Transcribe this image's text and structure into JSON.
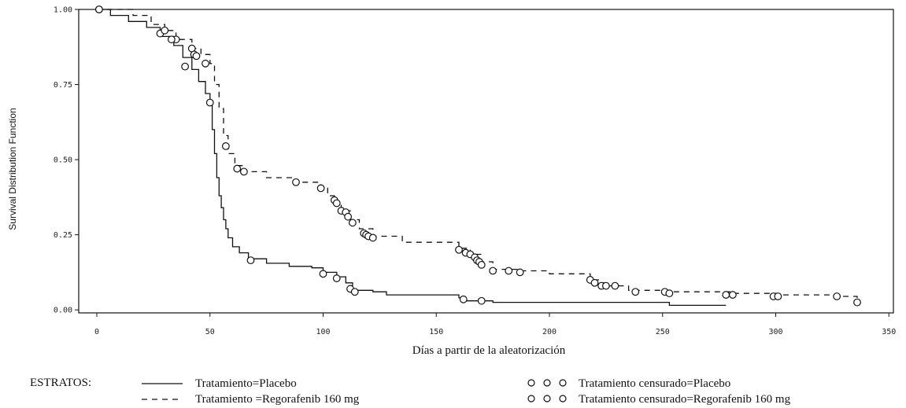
{
  "chart_data": {
    "type": "line",
    "title": "",
    "xlabel": "Días a partir de la aleatorización",
    "ylabel": "Survival Distribution Function",
    "xlim": [
      -8,
      352
    ],
    "ylim": [
      -0.01,
      1.0
    ],
    "x_ticks": [
      0,
      50,
      100,
      150,
      200,
      250,
      300,
      350
    ],
    "x_tick_labels": [
      "0",
      "50",
      "100",
      "150",
      "200",
      "250",
      "300",
      "350"
    ],
    "y_ticks": [
      0.0,
      0.25,
      0.5,
      0.75,
      1.0
    ],
    "y_tick_labels": [
      "0.00",
      "0.25",
      "0.50",
      "0.75",
      "1.00"
    ],
    "grid": false,
    "legend_position": "bottom",
    "series": [
      {
        "name": "Tratamiento=Placebo",
        "line_style": "solid",
        "points": [
          [
            0,
            1.0
          ],
          [
            6,
            0.98
          ],
          [
            14,
            0.96
          ],
          [
            22,
            0.94
          ],
          [
            28,
            0.91
          ],
          [
            34,
            0.88
          ],
          [
            38,
            0.84
          ],
          [
            42,
            0.8
          ],
          [
            45,
            0.76
          ],
          [
            48,
            0.72
          ],
          [
            50,
            0.68
          ],
          [
            51,
            0.6
          ],
          [
            52,
            0.52
          ],
          [
            53,
            0.44
          ],
          [
            54,
            0.38
          ],
          [
            55,
            0.34
          ],
          [
            56,
            0.3
          ],
          [
            57,
            0.27
          ],
          [
            58,
            0.24
          ],
          [
            60,
            0.21
          ],
          [
            63,
            0.19
          ],
          [
            67,
            0.17
          ],
          [
            75,
            0.155
          ],
          [
            85,
            0.145
          ],
          [
            95,
            0.14
          ],
          [
            100,
            0.125
          ],
          [
            106,
            0.11
          ],
          [
            110,
            0.09
          ],
          [
            113,
            0.065
          ],
          [
            122,
            0.06
          ],
          [
            128,
            0.05
          ],
          [
            160,
            0.04
          ],
          [
            163,
            0.03
          ],
          [
            175,
            0.025
          ],
          [
            253,
            0.015
          ],
          [
            278,
            0.015
          ]
        ]
      },
      {
        "name": "Tratamiento =Regorafenib 160 mg",
        "line_style": "dashed",
        "points": [
          [
            0,
            1.0
          ],
          [
            8,
            1.0
          ],
          [
            16,
            0.98
          ],
          [
            24,
            0.95
          ],
          [
            30,
            0.93
          ],
          [
            35,
            0.9
          ],
          [
            42,
            0.87
          ],
          [
            46,
            0.85
          ],
          [
            50,
            0.82
          ],
          [
            52,
            0.75
          ],
          [
            54,
            0.67
          ],
          [
            56,
            0.58
          ],
          [
            58,
            0.52
          ],
          [
            61,
            0.48
          ],
          [
            65,
            0.46
          ],
          [
            75,
            0.44
          ],
          [
            88,
            0.425
          ],
          [
            99,
            0.41
          ],
          [
            102,
            0.38
          ],
          [
            105,
            0.36
          ],
          [
            108,
            0.33
          ],
          [
            112,
            0.3
          ],
          [
            116,
            0.27
          ],
          [
            122,
            0.245
          ],
          [
            135,
            0.225
          ],
          [
            160,
            0.205
          ],
          [
            165,
            0.185
          ],
          [
            170,
            0.16
          ],
          [
            175,
            0.135
          ],
          [
            187,
            0.13
          ],
          [
            200,
            0.12
          ],
          [
            218,
            0.1
          ],
          [
            222,
            0.09
          ],
          [
            226,
            0.08
          ],
          [
            235,
            0.065
          ],
          [
            252,
            0.06
          ],
          [
            280,
            0.055
          ],
          [
            301,
            0.05
          ],
          [
            327,
            0.045
          ],
          [
            336,
            0.03
          ]
        ]
      }
    ],
    "censored": [
      {
        "name": "Tratamiento censurado=Placebo",
        "x": [
          1,
          28,
          35,
          39,
          50,
          68,
          100,
          106,
          112,
          114,
          162,
          170
        ],
        "y": [
          1.0,
          0.92,
          0.9,
          0.81,
          0.69,
          0.165,
          0.12,
          0.105,
          0.07,
          0.06,
          0.035,
          0.03
        ]
      },
      {
        "name": "Tratamiento censurado=Regorafenib 160 mg",
        "x": [
          1,
          30,
          33,
          42,
          43,
          44,
          48,
          57,
          62,
          65,
          88,
          99,
          105,
          106,
          108,
          110,
          111,
          113,
          118,
          119,
          120,
          122,
          160,
          163,
          165,
          167,
          168,
          169,
          170,
          175,
          182,
          187,
          218,
          220,
          223,
          225,
          229,
          238,
          251,
          253,
          278,
          281,
          299,
          301,
          327,
          336
        ],
        "y": [
          1.0,
          0.93,
          0.9,
          0.87,
          0.85,
          0.845,
          0.82,
          0.545,
          0.47,
          0.46,
          0.425,
          0.405,
          0.365,
          0.355,
          0.33,
          0.325,
          0.31,
          0.29,
          0.255,
          0.25,
          0.245,
          0.24,
          0.2,
          0.19,
          0.185,
          0.175,
          0.165,
          0.16,
          0.15,
          0.13,
          0.13,
          0.125,
          0.1,
          0.09,
          0.08,
          0.08,
          0.08,
          0.06,
          0.06,
          0.055,
          0.05,
          0.05,
          0.045,
          0.045,
          0.045,
          0.025
        ]
      }
    ]
  },
  "legend": {
    "title": "ESTRATOS:",
    "items": [
      {
        "label": "Tratamiento=Placebo",
        "style": "solid"
      },
      {
        "label": "Tratamiento =Regorafenib 160 mg",
        "style": "dashed"
      },
      {
        "label": "Tratamiento censurado=Placebo",
        "style": "circles"
      },
      {
        "label": "Tratamiento censurado=Regorafenib 160 mg",
        "style": "circles"
      }
    ]
  },
  "colors": {
    "ink": "#111111",
    "background": "#ffffff"
  }
}
